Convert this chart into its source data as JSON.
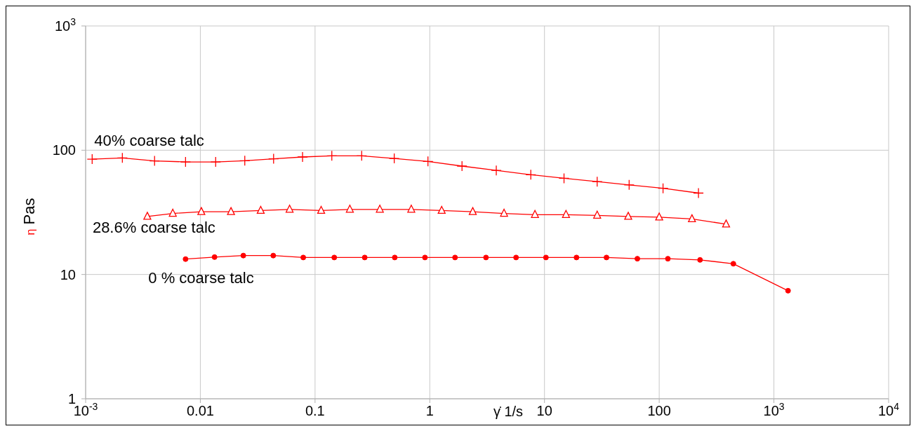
{
  "chart_data": {
    "type": "line",
    "xlabel": "γ̇ 1/s",
    "ylabel": "η Pas",
    "log": "xy",
    "grid": true,
    "line_style": "solid",
    "xlim": [
      0.001,
      10000
    ],
    "ylim": [
      1,
      1000
    ],
    "xticks": [
      {
        "value": 0.001,
        "label": "10$^{-3}$"
      },
      0.01,
      0.1,
      1,
      10,
      100,
      {
        "value": 1000,
        "label": "10$^{3}$"
      },
      {
        "value": 10000,
        "label": "10$^{4}$"
      }
    ],
    "yticks": [
      1,
      10,
      100,
      {
        "value": 1000,
        "label": "10$^{3}$"
      }
    ],
    "series": [
      {
        "name": "40% coarse talc",
        "color": "#ff0000",
        "marker": "cross",
        "x": [
          0.00114,
          0.00209,
          0.00399,
          0.00743,
          0.0136,
          0.0244,
          0.0435,
          0.0778,
          0.14,
          0.255,
          0.49,
          0.964,
          1.91,
          3.8,
          7.6,
          14.8,
          28.8,
          54.7,
          108,
          220
        ],
        "values": [
          84.8,
          86.7,
          82,
          80.5,
          80.5,
          82.3,
          85.3,
          88.2,
          90.2,
          90.2,
          85.9,
          81.2,
          74.5,
          68.8,
          63.5,
          59.4,
          55.9,
          52.6,
          49.4,
          45.2
        ]
      },
      {
        "name": "28.6% coarse talc",
        "color": "#ff0000",
        "marker": "triangle",
        "x": [
          0.00345,
          0.00575,
          0.0102,
          0.0185,
          0.0336,
          0.06,
          0.113,
          0.201,
          0.367,
          0.69,
          1.27,
          2.37,
          4.44,
          8.26,
          15.4,
          28.8,
          53.7,
          100,
          193,
          383
        ],
        "values": [
          29.3,
          31,
          32,
          32,
          32.7,
          33.4,
          32.7,
          33.4,
          33.4,
          33.4,
          32.7,
          32,
          31,
          30.3,
          30.3,
          29.9,
          29.3,
          28.9,
          28,
          25.4
        ]
      },
      {
        "name": "0 % coarse talc",
        "color": "#ff0000",
        "marker": "circle",
        "x": [
          0.00743,
          0.0133,
          0.0237,
          0.0432,
          0.0789,
          0.147,
          0.271,
          0.495,
          0.908,
          1.66,
          3.09,
          5.65,
          10.3,
          19,
          34.7,
          64.5,
          119,
          227,
          443,
          1328
        ],
        "values": [
          13.3,
          13.8,
          14.2,
          14.2,
          13.7,
          13.7,
          13.7,
          13.7,
          13.7,
          13.7,
          13.7,
          13.7,
          13.7,
          13.7,
          13.7,
          13.4,
          13.4,
          13.1,
          12.2,
          7.4
        ]
      }
    ]
  }
}
